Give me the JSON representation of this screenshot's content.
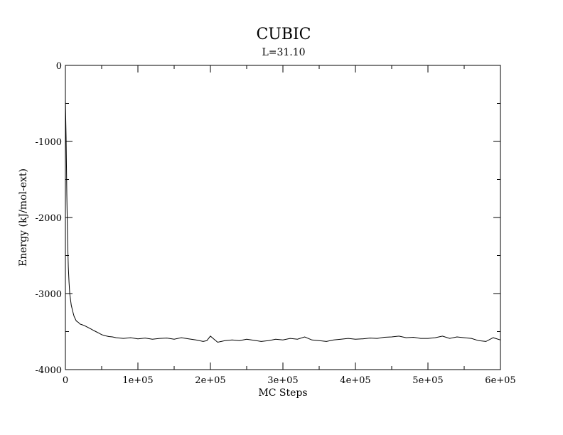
{
  "chart_data": {
    "type": "line",
    "title": "CUBIC",
    "subtitle": "L=31.10",
    "xlabel": "MC Steps",
    "ylabel": "Energy (kJ/mol-ext)",
    "xlim": [
      0,
      600000
    ],
    "ylim": [
      -4000,
      0
    ],
    "x_ticks": [
      {
        "value": 0,
        "label": "0"
      },
      {
        "value": 100000,
        "label": "1e+05"
      },
      {
        "value": 200000,
        "label": "2e+05"
      },
      {
        "value": 300000,
        "label": "3e+05"
      },
      {
        "value": 400000,
        "label": "4e+05"
      },
      {
        "value": 500000,
        "label": "5e+05"
      },
      {
        "value": 600000,
        "label": "6e+05"
      }
    ],
    "y_ticks": [
      {
        "value": 0,
        "label": "0"
      },
      {
        "value": -1000,
        "label": "-1000"
      },
      {
        "value": -2000,
        "label": "-2000"
      },
      {
        "value": -3000,
        "label": "-3000"
      },
      {
        "value": -4000,
        "label": "-4000"
      }
    ],
    "x_minor_step": 50000,
    "y_minor_step": 500,
    "grid": false,
    "line_color": "#000000",
    "series": [
      {
        "x": [
          0,
          1000,
          2000,
          3000,
          4000,
          5000,
          6000,
          8000,
          10000,
          12000,
          15000,
          18000,
          20000,
          23000,
          26000,
          30000,
          34000,
          38000,
          42000,
          46000,
          50000,
          55000,
          60000,
          65000,
          70000,
          75000,
          80000,
          90000,
          100000,
          110000,
          120000,
          130000,
          140000,
          150000,
          160000,
          170000,
          180000,
          190000,
          195000,
          200000,
          205000,
          210000,
          220000,
          230000,
          240000,
          250000,
          260000,
          270000,
          280000,
          290000,
          300000,
          310000,
          320000,
          330000,
          340000,
          350000,
          360000,
          370000,
          380000,
          390000,
          400000,
          410000,
          420000,
          430000,
          440000,
          450000,
          460000,
          470000,
          480000,
          490000,
          500000,
          510000,
          520000,
          530000,
          540000,
          550000,
          560000,
          570000,
          580000,
          590000,
          600000
        ],
        "y": [
          -450,
          -950,
          -1700,
          -2300,
          -2650,
          -2850,
          -3000,
          -3150,
          -3230,
          -3300,
          -3360,
          -3380,
          -3400,
          -3410,
          -3420,
          -3440,
          -3460,
          -3480,
          -3500,
          -3520,
          -3540,
          -3555,
          -3565,
          -3570,
          -3580,
          -3585,
          -3590,
          -3580,
          -3595,
          -3585,
          -3600,
          -3590,
          -3585,
          -3600,
          -3580,
          -3595,
          -3610,
          -3630,
          -3620,
          -3560,
          -3600,
          -3640,
          -3620,
          -3610,
          -3620,
          -3600,
          -3615,
          -3630,
          -3620,
          -3600,
          -3610,
          -3590,
          -3600,
          -3570,
          -3610,
          -3620,
          -3630,
          -3610,
          -3600,
          -3590,
          -3600,
          -3595,
          -3585,
          -3590,
          -3575,
          -3570,
          -3560,
          -3580,
          -3575,
          -3590,
          -3590,
          -3580,
          -3560,
          -3590,
          -3570,
          -3580,
          -3590,
          -3620,
          -3630,
          -3580,
          -3610
        ]
      }
    ]
  }
}
